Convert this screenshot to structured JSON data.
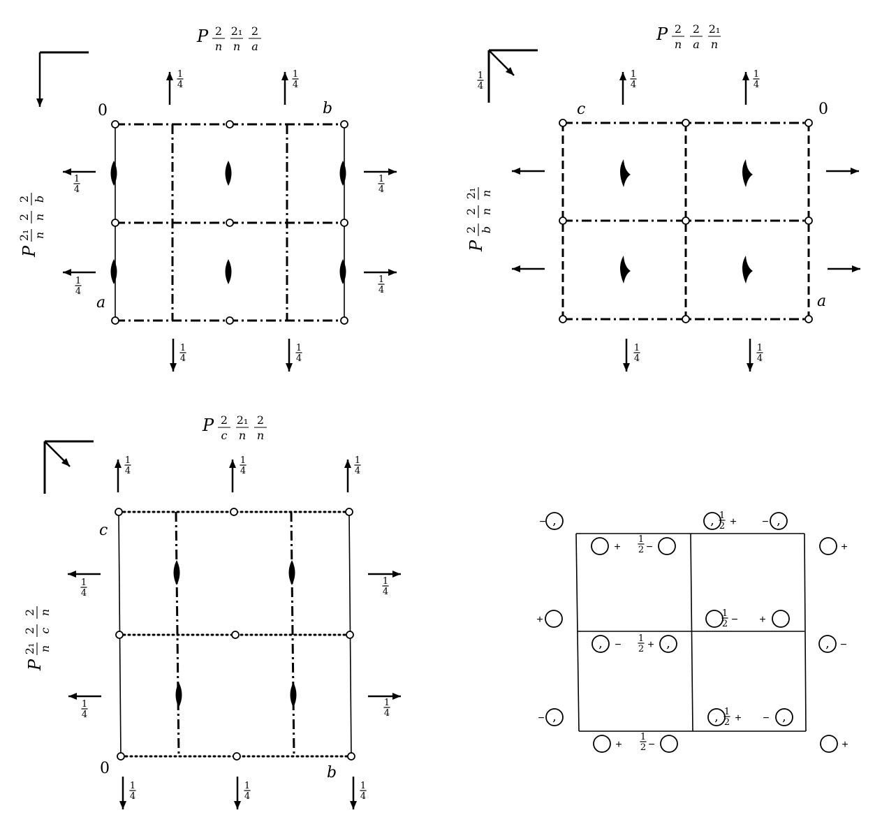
{
  "panels": [
    {
      "id": "top-left",
      "title": {
        "sym": "P",
        "parts": [
          [
            "2",
            "n"
          ],
          [
            "2₁",
            "n"
          ],
          [
            "2",
            "a"
          ]
        ]
      },
      "side_title": {
        "sym": "P",
        "parts": [
          [
            "2₁",
            "n"
          ],
          [
            "2",
            "n"
          ],
          [
            "2",
            "b"
          ]
        ]
      },
      "labels": {
        "origin": "0",
        "right": "b",
        "bottom": "a"
      },
      "frac_num": "1",
      "frac_den": "4",
      "corner_frac": ""
    },
    {
      "id": "top-right",
      "title": {
        "sym": "P",
        "parts": [
          [
            "2",
            "n"
          ],
          [
            "2",
            "a"
          ],
          [
            "2₁",
            "n"
          ]
        ]
      },
      "side_title": {
        "sym": "P",
        "parts": [
          [
            "2",
            "b"
          ],
          [
            "2",
            "n"
          ],
          [
            "2₁",
            "n"
          ]
        ]
      },
      "labels": {
        "origin": "0",
        "left": "c",
        "bottom": "a"
      },
      "frac_num": "1",
      "frac_den": "4",
      "corner_frac": "1/4"
    },
    {
      "id": "bottom-left",
      "title": {
        "sym": "P",
        "parts": [
          [
            "2",
            "c"
          ],
          [
            "2₁",
            "n"
          ],
          [
            "2",
            "n"
          ]
        ]
      },
      "side_title": {
        "sym": "P",
        "parts": [
          [
            "2₁",
            "n"
          ],
          [
            "2",
            "c"
          ],
          [
            "2",
            "n"
          ]
        ]
      },
      "labels": {
        "origin": "0",
        "right": "b",
        "top": "c"
      },
      "frac_num": "1",
      "frac_den": "4",
      "corner_frac": ""
    }
  ],
  "positions": {
    "half": "½",
    "plus": "+",
    "minus": "−",
    "comma": ","
  }
}
